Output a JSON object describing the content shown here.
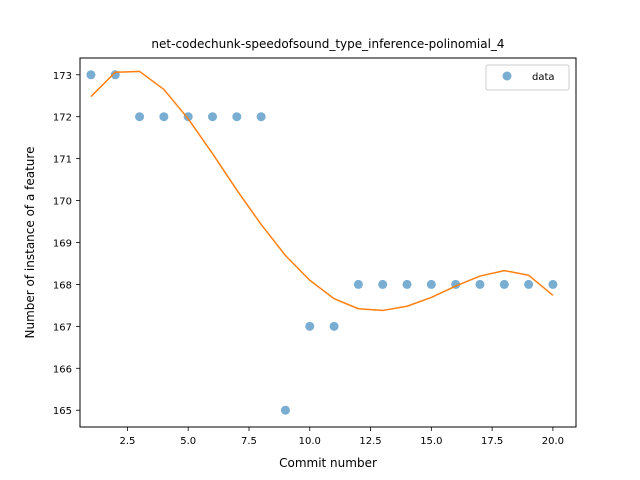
{
  "chart_data": {
    "type": "scatter",
    "title": "net-codechunk-speedofsound_type_inference-polinomial_4",
    "xlabel": "Commit number",
    "ylabel": "Number of instance of a feature",
    "xlim": [
      0.55,
      20.95
    ],
    "ylim": [
      164.6,
      173.4
    ],
    "xticks": [
      2.5,
      5.0,
      7.5,
      10.0,
      12.5,
      15.0,
      17.5,
      20.0
    ],
    "xtick_labels": [
      "2.5",
      "5.0",
      "7.5",
      "10.0",
      "12.5",
      "15.0",
      "17.5",
      "20.0"
    ],
    "yticks": [
      165,
      166,
      167,
      168,
      169,
      170,
      171,
      172,
      173
    ],
    "ytick_labels": [
      "165",
      "166",
      "167",
      "168",
      "169",
      "170",
      "171",
      "172",
      "173"
    ],
    "grid": false,
    "legend_position": "top-right",
    "series": [
      {
        "name": "data",
        "kind": "scatter",
        "color": "#1f77b4",
        "x": [
          1,
          2,
          3,
          4,
          5,
          6,
          7,
          8,
          9,
          10,
          11,
          12,
          13,
          14,
          15,
          16,
          17,
          18,
          19,
          20
        ],
        "y": [
          173,
          173,
          172,
          172,
          172,
          172,
          172,
          172,
          165,
          167,
          167,
          168,
          168,
          168,
          168,
          168,
          168,
          168,
          168,
          168
        ]
      },
      {
        "name": "",
        "kind": "line",
        "color": "#ff7f0e",
        "x": [
          1,
          2,
          3,
          4,
          5,
          6,
          7,
          8,
          9,
          10,
          11,
          12,
          13,
          14,
          15,
          16,
          17,
          18,
          19,
          20
        ],
        "y": [
          172.48,
          173.06,
          173.08,
          172.65,
          171.95,
          171.12,
          170.25,
          169.43,
          168.69,
          168.1,
          167.66,
          167.42,
          167.38,
          167.48,
          167.69,
          167.96,
          168.2,
          168.33,
          168.22,
          167.74
        ]
      }
    ]
  }
}
